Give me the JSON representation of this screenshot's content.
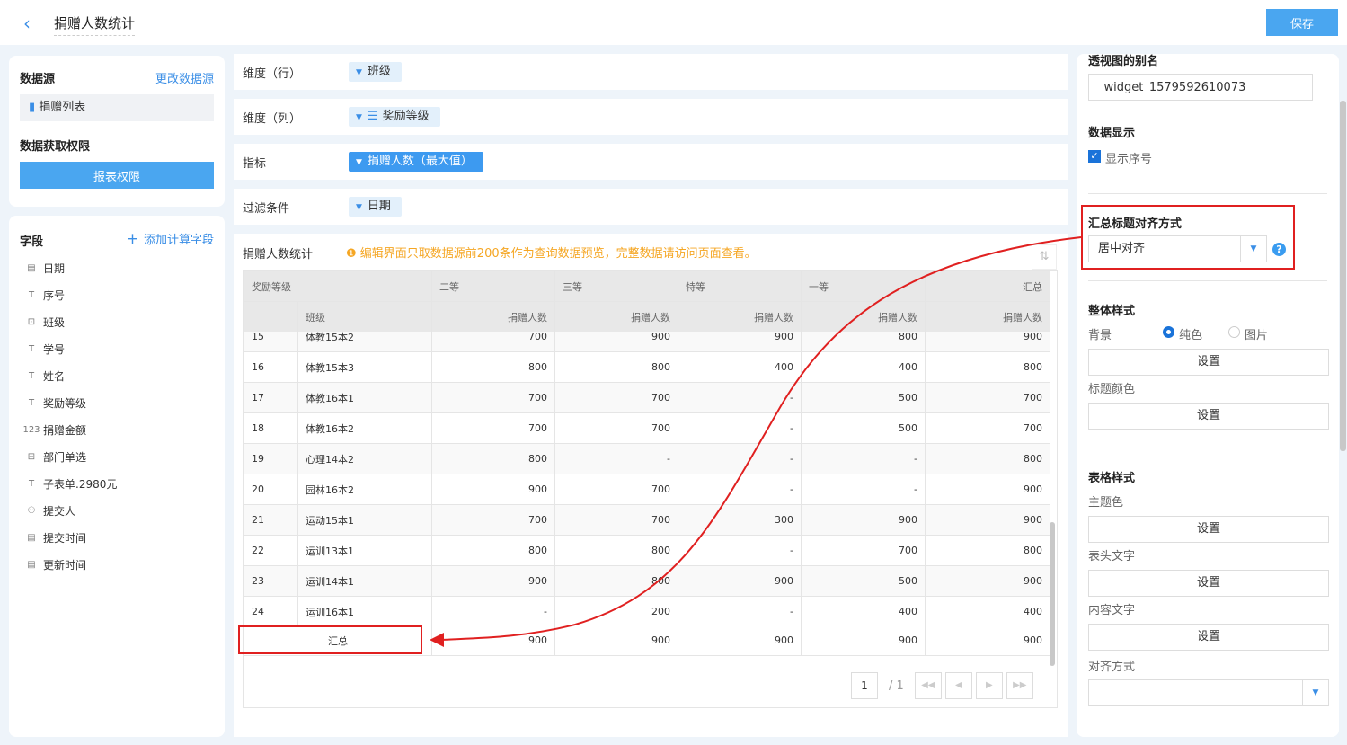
{
  "header": {
    "title": "捐赠人数统计",
    "save": "保存"
  },
  "left": {
    "datasource_label": "数据源",
    "change_source": "更改数据源",
    "source_name": "捐赠列表",
    "permission_label": "数据获取权限",
    "permission_button": "报表权限",
    "fields_label": "字段",
    "add_field": "添加计算字段",
    "fields": [
      {
        "icon": "date-icon",
        "glyph": "▤",
        "label": "日期"
      },
      {
        "icon": "text-icon",
        "glyph": "T",
        "label": "序号"
      },
      {
        "icon": "dropdown-icon",
        "glyph": "⊡",
        "label": "班级"
      },
      {
        "icon": "text-icon",
        "glyph": "T",
        "label": "学号"
      },
      {
        "icon": "text-icon",
        "glyph": "T",
        "label": "姓名"
      },
      {
        "icon": "text-icon",
        "glyph": "T",
        "label": "奖励等级"
      },
      {
        "icon": "number-icon",
        "glyph": "123",
        "label": "捐赠金额"
      },
      {
        "icon": "department-icon",
        "glyph": "⊟",
        "label": "部门单选"
      },
      {
        "icon": "text-icon",
        "glyph": "T",
        "label": "子表单.2980元"
      },
      {
        "icon": "user-icon",
        "glyph": "⚇",
        "label": "提交人"
      },
      {
        "icon": "date-icon",
        "glyph": "▤",
        "label": "提交时间"
      },
      {
        "icon": "date-icon",
        "glyph": "▤",
        "label": "更新时间"
      }
    ]
  },
  "config": {
    "row_dim": {
      "label": "维度（行）",
      "value": "班级"
    },
    "col_dim": {
      "label": "维度（列）",
      "value": "奖励等级"
    },
    "metric": {
      "label": "指标",
      "value": "捐赠人数（最大值）"
    },
    "filter": {
      "label": "过滤条件",
      "value": "日期"
    }
  },
  "preview": {
    "title": "捐赠人数统计",
    "notice": "编辑界面只取数据源前200条作为查询数据预览，完整数据请访问页面查看。",
    "header1": [
      "奖励等级",
      "二等",
      "三等",
      "特等",
      "一等",
      "汇总"
    ],
    "header2": [
      "班级",
      "捐赠人数",
      "捐赠人数",
      "捐赠人数",
      "捐赠人数",
      "捐赠人数"
    ],
    "rows": [
      [
        "15",
        "体教15本2",
        "700",
        "900",
        "900",
        "800",
        "900"
      ],
      [
        "16",
        "体教15本3",
        "800",
        "800",
        "400",
        "400",
        "800"
      ],
      [
        "17",
        "体教16本1",
        "700",
        "700",
        "-",
        "500",
        "700"
      ],
      [
        "18",
        "体教16本2",
        "700",
        "700",
        "-",
        "500",
        "700"
      ],
      [
        "19",
        "心理14本2",
        "800",
        "-",
        "-",
        "-",
        "800"
      ],
      [
        "20",
        "园林16本2",
        "900",
        "700",
        "-",
        "-",
        "900"
      ],
      [
        "21",
        "运动15本1",
        "700",
        "700",
        "300",
        "900",
        "900"
      ],
      [
        "22",
        "运训13本1",
        "800",
        "800",
        "-",
        "700",
        "800"
      ],
      [
        "23",
        "运训14本1",
        "900",
        "800",
        "900",
        "500",
        "900"
      ],
      [
        "24",
        "运训16本1",
        "-",
        "200",
        "-",
        "400",
        "400"
      ]
    ],
    "summary": [
      "汇总",
      "900",
      "900",
      "900",
      "900",
      "900"
    ],
    "page": "1",
    "total_pages": "/ 1"
  },
  "right": {
    "alias_label": "透视图的别名",
    "alias_value": "_widget_1579592610073",
    "display_label": "数据显示",
    "show_index": "显示序号",
    "show_index_checked": true,
    "align_label": "汇总标题对齐方式",
    "align_value": "居中对齐",
    "overall_label": "整体样式",
    "bg_label": "背景",
    "bg_solid": "纯色",
    "bg_image": "图片",
    "bg_selected": "纯色",
    "set": "设置",
    "title_color": "标题颜色",
    "table_style": "表格样式",
    "theme_color": "主题色",
    "header_text": "表头文字",
    "content_text": "内容文字",
    "align_mode": "对齐方式"
  },
  "colors": {
    "accent": "#3a8ee6",
    "highlight": "#e02020",
    "notice": "#f5a623"
  }
}
